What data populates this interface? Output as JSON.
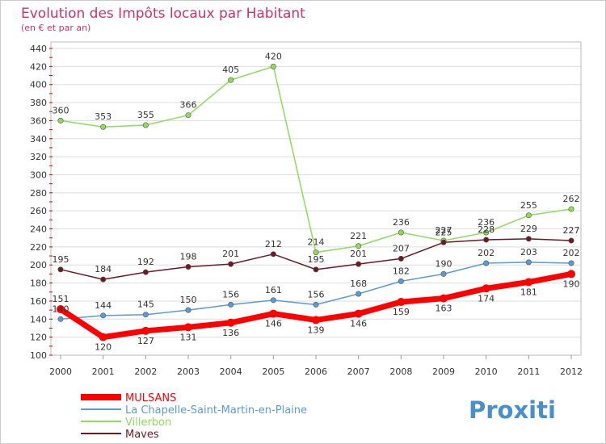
{
  "chart_data": {
    "type": "line",
    "title": "Evolution des Impôts locaux par Habitant",
    "subtitle": "(en € et par an)",
    "xlabel": "",
    "ylabel": "",
    "x": [
      "2000",
      "2001",
      "2002",
      "2003",
      "2004",
      "2005",
      "2006",
      "2007",
      "2008",
      "2009",
      "2010",
      "2011",
      "2012"
    ],
    "y_ticks": [
      "100",
      "120",
      "140",
      "160",
      "180",
      "200",
      "220",
      "240",
      "260",
      "280",
      "300",
      "320",
      "340",
      "360",
      "380",
      "400",
      "420",
      "440"
    ],
    "ylim": [
      100,
      440
    ],
    "grid": "horizontal",
    "legend_position": "bottom-left",
    "series": [
      {
        "name": "MULSANS",
        "color": "#ff0000",
        "values": [
          151,
          120,
          127,
          131,
          136,
          146,
          139,
          146,
          159,
          163,
          174,
          181,
          190
        ]
      },
      {
        "name": "La Chapelle-Saint-Martin-en-Plaine",
        "color": "#5b9bd5",
        "values": [
          140,
          144,
          145,
          150,
          156,
          161,
          156,
          168,
          182,
          190,
          202,
          203,
          202
        ]
      },
      {
        "name": "Villerbon",
        "color": "#8fdb5a",
        "values": [
          360,
          353,
          355,
          366,
          405,
          420,
          214,
          221,
          236,
          227,
          236,
          255,
          262
        ]
      },
      {
        "name": "Maves",
        "color": "#6b1a24",
        "values": [
          195,
          184,
          192,
          198,
          201,
          212,
          195,
          201,
          207,
          225,
          228,
          229,
          227
        ]
      }
    ],
    "data_labels": [
      [
        "151",
        "120",
        "127",
        "131",
        "136",
        "146",
        "139",
        "146",
        "159",
        "163",
        "174",
        "181",
        "190"
      ],
      [
        "140",
        "144",
        "145",
        "150",
        "156",
        "161",
        "156",
        "168",
        "182",
        "190",
        "202",
        "203",
        "202"
      ],
      [
        "360",
        "353",
        "355",
        "366",
        "405",
        "420",
        "214",
        "221",
        "236",
        "227",
        "236",
        "255",
        "262"
      ],
      [
        "195",
        "184",
        "192",
        "198",
        "201",
        "212",
        "195",
        "201",
        "207",
        "225",
        "228",
        "229",
        "227"
      ]
    ]
  },
  "logo": {
    "text": "Proxiti"
  },
  "colors": {
    "title": "#c8326e",
    "grid": "#dddddd",
    "frame": "#bbbbbb"
  }
}
